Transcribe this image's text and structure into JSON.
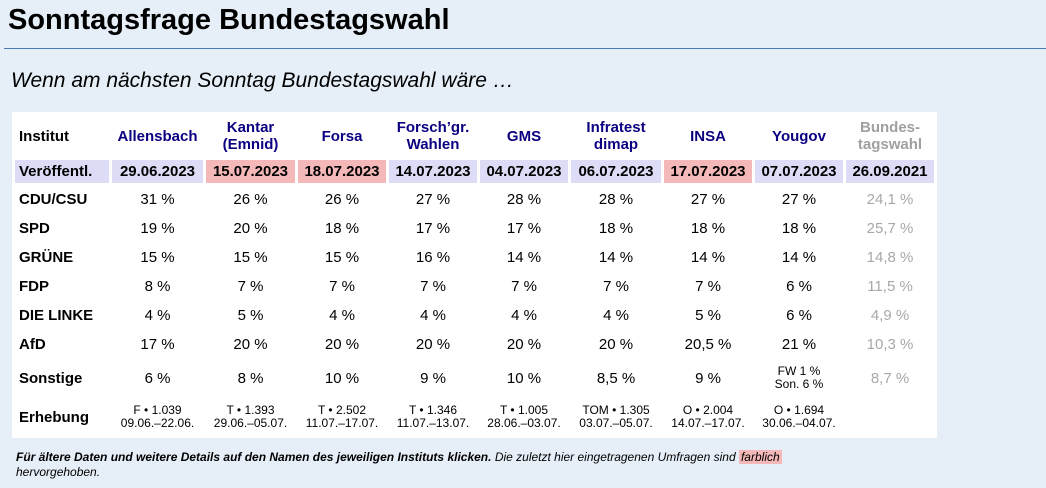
{
  "page": {
    "title": "Sonntagsfrage Bundestagswahl",
    "subtitle": "Wenn am nächsten Sonntag Bundestagswahl wäre …"
  },
  "table": {
    "corner": "Institut",
    "institutes": [
      {
        "name": "Allensbach"
      },
      {
        "name": "Kantar (Emnid)"
      },
      {
        "name": "Forsa"
      },
      {
        "name": "Forsch’gr. Wahlen"
      },
      {
        "name": "GMS"
      },
      {
        "name": "Infratest dimap"
      },
      {
        "name": "INSA"
      },
      {
        "name": "Yougov"
      },
      {
        "name": "Bundes-tagswahl"
      }
    ],
    "published_label": "Veröffentl.",
    "published": [
      "29.06.2023",
      "15.07.2023",
      "18.07.2023",
      "14.07.2023",
      "04.07.2023",
      "06.07.2023",
      "17.07.2023",
      "07.07.2023",
      "26.09.2021"
    ],
    "rows": [
      {
        "label": "CDU/CSU",
        "values": [
          "31 %",
          "26 %",
          "26 %",
          "27 %",
          "28 %",
          "28 %",
          "27 %",
          "27 %",
          "24,1 %"
        ]
      },
      {
        "label": "SPD",
        "values": [
          "19 %",
          "20 %",
          "18 %",
          "17 %",
          "17 %",
          "18 %",
          "18 %",
          "18 %",
          "25,7 %"
        ]
      },
      {
        "label": "GRÜNE",
        "values": [
          "15 %",
          "15 %",
          "15 %",
          "16 %",
          "14 %",
          "14 %",
          "14 %",
          "14 %",
          "14,8 %"
        ]
      },
      {
        "label": "FDP",
        "values": [
          "8 %",
          "7 %",
          "7 %",
          "7 %",
          "7 %",
          "7 %",
          "7 %",
          "6 %",
          "11,5 %"
        ]
      },
      {
        "label": "DIE LINKE",
        "values": [
          "4 %",
          "5 %",
          "4 %",
          "4 %",
          "4 %",
          "4 %",
          "5 %",
          "6 %",
          "4,9 %"
        ]
      },
      {
        "label": "AfD",
        "values": [
          "17 %",
          "20 %",
          "20 %",
          "20 %",
          "20 %",
          "20 %",
          "20,5 %",
          "21 %",
          "10,3 %"
        ]
      }
    ],
    "other": {
      "label": "Sonstige",
      "values": [
        "6 %",
        "8 %",
        "10 %",
        "9 %",
        "10 %",
        "8,5 %",
        "9 %",
        "",
        "8,7 %"
      ],
      "yougov_line1": "FW 1 %",
      "yougov_line2": "Son. 6 %"
    },
    "survey": {
      "label": "Erhebung",
      "line1": [
        "F • 1.039",
        "T • 1.393",
        "T • 2.502",
        "T • 1.346",
        "T • 1.005",
        "TOM • 1.305",
        "O • 2.004",
        "O • 1.694"
      ],
      "line2": [
        "09.06.–22.06.",
        "29.06.–05.07.",
        "11.07.–17.07.",
        "11.07.–13.07.",
        "28.06.–03.07.",
        "03.07.–05.07.",
        "14.07.–17.07.",
        "30.06.–04.07."
      ]
    }
  },
  "footnote": {
    "bold": "Für ältere Daten und weitere Details auf den Namen des jeweiligen Instituts klicken.",
    "text": "Die zuletzt hier eingetragenen Umfragen sind",
    "marked": "farblich",
    "text2": "hervorgehoben."
  },
  "colors": {
    "highlight": "#f4b8b8",
    "header_row": "#dcdcf6",
    "link": "#0b0080"
  }
}
